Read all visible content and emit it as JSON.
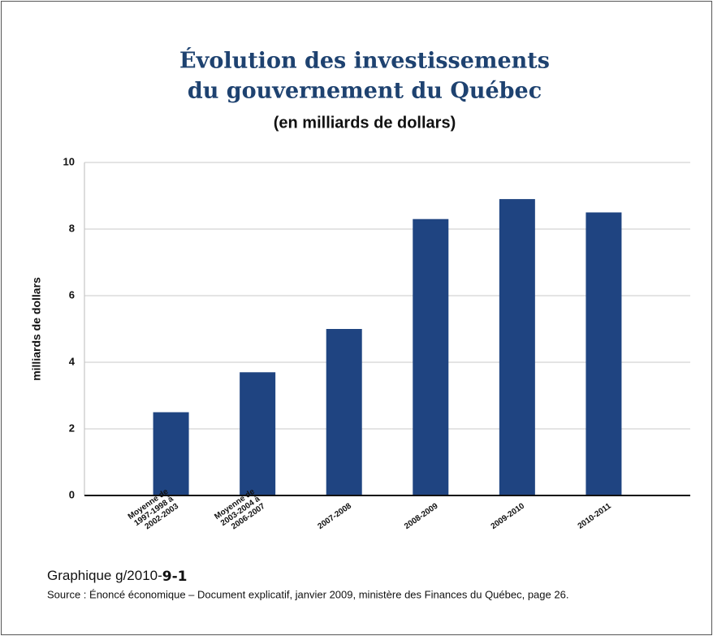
{
  "chart_data": {
    "type": "bar",
    "title": [
      "Évolution des investissements",
      "du gouvernement du Québec"
    ],
    "subtitle": "(en milliards de dollars)",
    "y_label": "milliards de dollars",
    "categories": [
      "Moyenne de\n1997-1998 à\n2002-2003",
      "Moyenne de\n2003-2004 à\n2006-2007",
      "2007-2008",
      "2008-2009",
      "2009-2010",
      "2010-2011"
    ],
    "values": [
      2.5,
      3.7,
      5.0,
      8.3,
      8.9,
      8.5
    ],
    "color": "#1f4481",
    "ylim": [
      0,
      10
    ],
    "yticks": [
      0,
      2,
      4,
      6,
      8,
      10
    ],
    "grid": true,
    "caption": "Graphique g/2010-",
    "caption_number": "9-1",
    "source": "Source : Énoncé économique – Document explicatif, janvier 2009, ministère des Finances du Québec, page 26."
  }
}
